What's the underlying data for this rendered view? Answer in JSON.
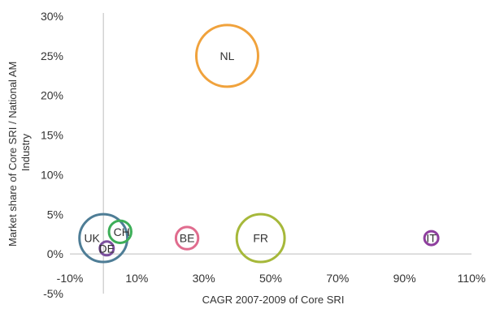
{
  "chart_data": {
    "type": "bubble",
    "xlabel": "CAGR 2007-2009 of Core SRI",
    "ylabel": "Market share of Core SRI / National AM Industry",
    "xlim": [
      -10,
      110
    ],
    "ylim": [
      -5,
      30
    ],
    "xticks": [
      "-10%",
      "10%",
      "30%",
      "50%",
      "70%",
      "90%",
      "110%"
    ],
    "yticks": [
      "-5%",
      "0%",
      "5%",
      "10%",
      "15%",
      "20%",
      "25%",
      "30%"
    ],
    "grid": false,
    "points": [
      {
        "label": "NL",
        "x": 37,
        "y": 25,
        "size": 100,
        "color": "#F0A23C"
      },
      {
        "label": "FR",
        "x": 47,
        "y": 2,
        "size": 60,
        "color": "#A6B83A"
      },
      {
        "label": "UK",
        "x": 0,
        "y": 2,
        "size": 60,
        "color": "#4E7D96"
      },
      {
        "label": "CH",
        "x": 5,
        "y": 2.8,
        "size": 13,
        "color": "#3DAE58"
      },
      {
        "label": "BE",
        "x": 25,
        "y": 2,
        "size": 13,
        "color": "#E06C8E"
      },
      {
        "label": "DE",
        "x": 1,
        "y": 0.7,
        "size": 5,
        "color": "#7B4F9E"
      },
      {
        "label": "IT",
        "x": 98,
        "y": 2,
        "size": 5,
        "color": "#8E3E9E"
      }
    ]
  }
}
